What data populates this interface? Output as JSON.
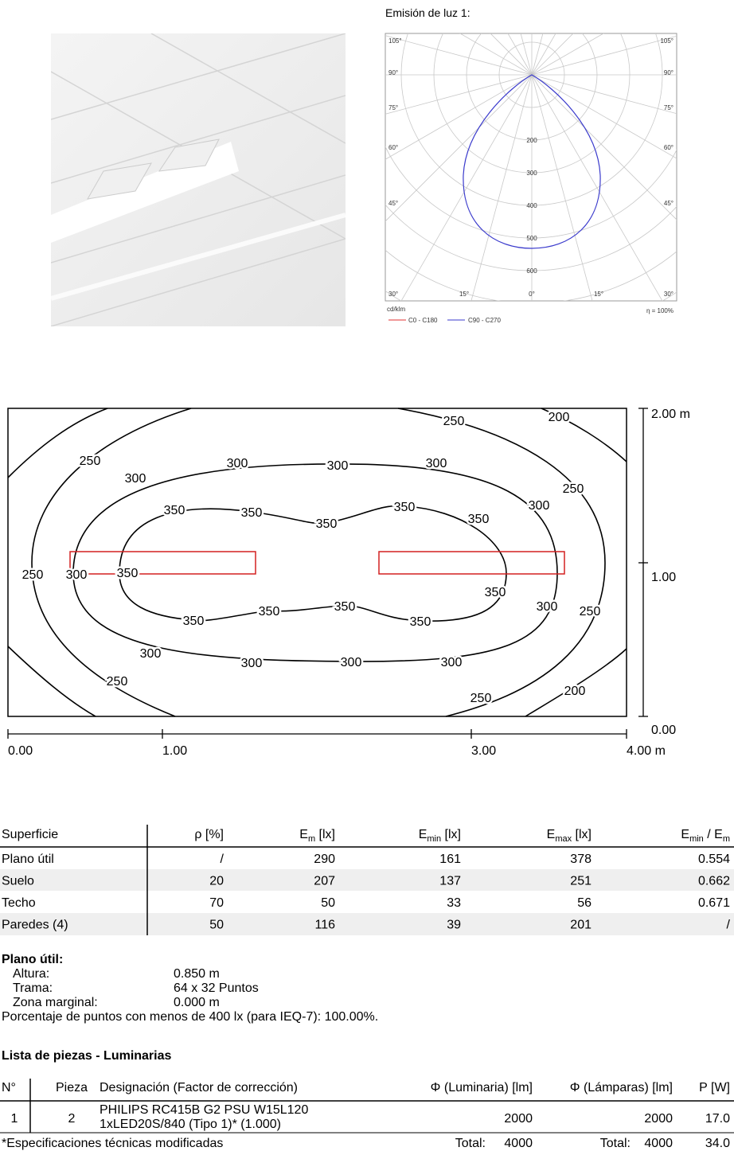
{
  "polar": {
    "title": "Emisión de luz 1:",
    "angle_labels_left": [
      "105°",
      "90°",
      "75°",
      "60°",
      "45°",
      "30°"
    ],
    "angle_labels_right": [
      "105°",
      "90°",
      "75°",
      "60°",
      "45°",
      "30°"
    ],
    "angle_labels_bottom": [
      "15°",
      "0°",
      "15°"
    ],
    "radial_labels": [
      200,
      300,
      400,
      500,
      600
    ],
    "unit": "cd/klm",
    "legend": [
      "C0 - C180",
      "C90 - C270"
    ],
    "efficiency": "η = 100%"
  },
  "isolines": {
    "x_labels": [
      "0.00",
      "1.00",
      "3.00",
      "4.00 m"
    ],
    "y_labels": [
      "2.00 m",
      "1.00",
      "0.00"
    ],
    "contour_labels": [
      250,
      200,
      250,
      300,
      300,
      300,
      300,
      250,
      300,
      350,
      350,
      350,
      350,
      350,
      250,
      300,
      350,
      350,
      300,
      250,
      350,
      350,
      350,
      350,
      300,
      300,
      300,
      300,
      250,
      250,
      200
    ]
  },
  "surface_table": {
    "headers": [
      "Superficie",
      "ρ [%]",
      {
        "text": "E",
        "sub": "m",
        "after": " [lx]"
      },
      {
        "text": "E",
        "sub": "min",
        "after": " [lx]"
      },
      {
        "text": "E",
        "sub": "max",
        "after": " [lx]"
      },
      {
        "text": "E",
        "sub": "min",
        "after": " / E",
        "sub2": "m"
      }
    ],
    "rows": [
      [
        "Plano útil",
        "/",
        290,
        161,
        378,
        0.554
      ],
      [
        "Suelo",
        20,
        207,
        137,
        251,
        0.662
      ],
      [
        "Techo",
        70,
        50,
        33,
        56,
        0.671
      ],
      [
        "Paredes (4)",
        50,
        116,
        39,
        201,
        "/"
      ]
    ]
  },
  "work_plane": {
    "title": "Plano útil:",
    "fields": [
      {
        "label": "Altura:",
        "value": "0.850 m"
      },
      {
        "label": "Trama:",
        "value": "64 x 32 Puntos"
      },
      {
        "label": "Zona marginal:",
        "value": "0.000 m"
      }
    ],
    "note": "Porcentaje de puntos con menos de 400 lx (para IEQ-7): 100.00%."
  },
  "parts": {
    "title": "Lista de piezas - Luminarias",
    "headers": [
      "N°",
      "Pieza",
      "Designación (Factor de corrección)",
      "Φ (Luminaria) [lm]",
      "Φ (Lámparas) [lm]",
      "P [W]"
    ],
    "row": {
      "no": 1,
      "pieces": 2,
      "designation": [
        "PHILIPS RC415B G2 PSU W15L120",
        "1xLED20S/840 (Tipo 1)* (1.000)"
      ],
      "flux_luminaire": 2000,
      "flux_lamps": 2000,
      "power": "17.0"
    },
    "totals": {
      "label_luminaire": "Total:",
      "luminaire": 4000,
      "label_lamps": "Total:",
      "lamps": 4000,
      "power": "34.0"
    },
    "footnote": "*Especificaciones técnicas modificadas"
  }
}
